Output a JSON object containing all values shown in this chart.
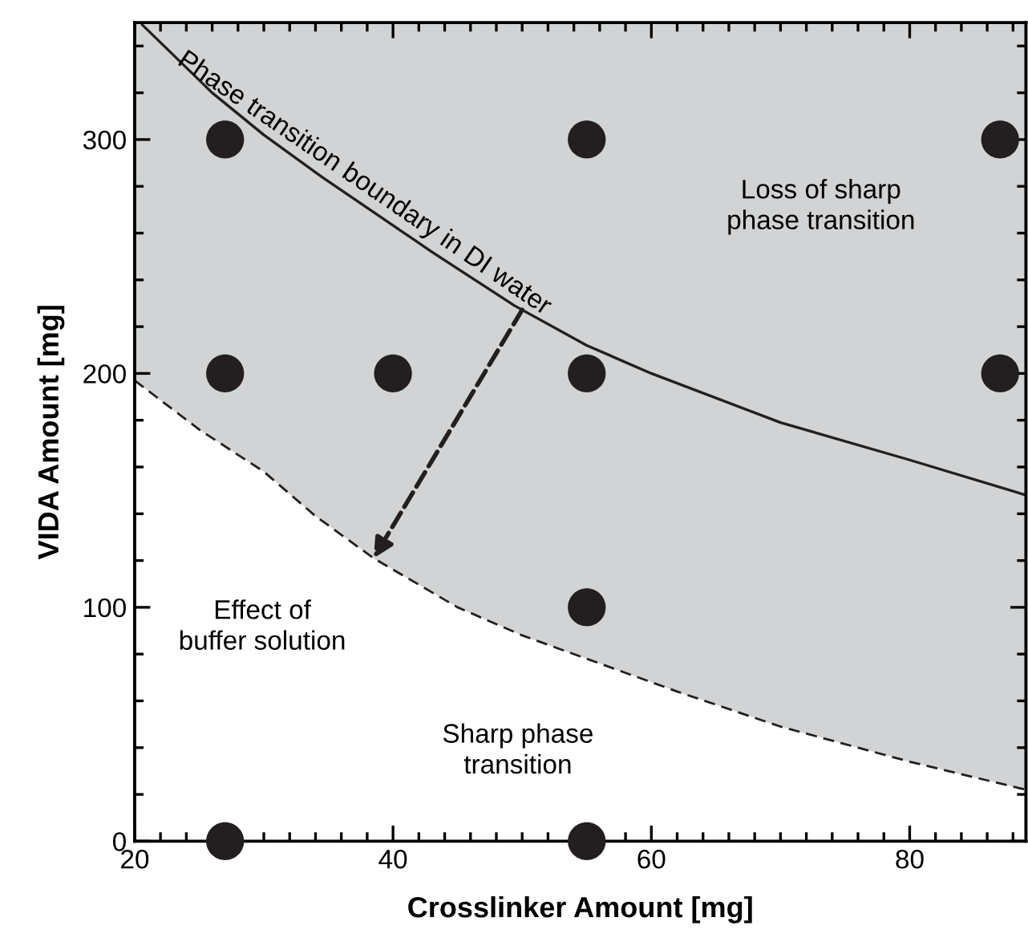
{
  "chart_data": {
    "type": "scatter",
    "xlabel": "Crosslinker Amount [mg]",
    "ylabel": "VIDA Amount [mg]",
    "xlim": [
      20,
      89
    ],
    "ylim": [
      0,
      350
    ],
    "xticks": [
      20,
      {
        "value": 22,
        "label": null
      },
      {
        "value": 24,
        "label": null
      },
      {
        "value": 26,
        "label": null
      },
      {
        "value": 28,
        "label": null
      },
      {
        "value": 30,
        "label": null
      },
      {
        "value": 32,
        "label": null
      },
      {
        "value": 34,
        "label": null
      },
      {
        "value": 36,
        "label": null
      },
      {
        "value": 38,
        "label": null
      },
      40,
      {
        "value": 42,
        "label": null
      },
      {
        "value": 44,
        "label": null
      },
      {
        "value": 46,
        "label": null
      },
      {
        "value": 48,
        "label": null
      },
      {
        "value": 50,
        "label": null
      },
      {
        "value": 52,
        "label": null
      },
      {
        "value": 54,
        "label": null
      },
      {
        "value": 56,
        "label": null
      },
      {
        "value": 58,
        "label": null
      },
      60,
      {
        "value": 62,
        "label": null
      },
      {
        "value": 64,
        "label": null
      },
      {
        "value": 66,
        "label": null
      },
      {
        "value": 68,
        "label": null
      },
      {
        "value": 70,
        "label": null
      },
      {
        "value": 72,
        "label": null
      },
      {
        "value": 74,
        "label": null
      },
      {
        "value": 76,
        "label": null
      },
      {
        "value": 78,
        "label": null
      },
      80,
      {
        "value": 82,
        "label": null
      },
      {
        "value": 84,
        "label": null
      },
      {
        "value": 86,
        "label": null
      },
      {
        "value": 88,
        "label": null
      }
    ],
    "yticks": [
      0,
      {
        "value": 20,
        "label": null
      },
      {
        "value": 40,
        "label": null
      },
      {
        "value": 60,
        "label": null
      },
      {
        "value": 80,
        "label": null
      },
      100,
      {
        "value": 120,
        "label": null
      },
      {
        "value": 140,
        "label": null
      },
      {
        "value": 160,
        "label": null
      },
      {
        "value": 180,
        "label": null
      },
      200,
      {
        "value": 220,
        "label": null
      },
      {
        "value": 240,
        "label": null
      },
      {
        "value": 260,
        "label": null
      },
      {
        "value": 280,
        "label": null
      },
      300,
      {
        "value": 320,
        "label": null
      },
      {
        "value": 340,
        "label": null
      }
    ],
    "bands": [
      {
        "axis": "x",
        "from": 20,
        "to": 89,
        "color": "#d1d3d4"
      }
    ],
    "series": [
      {
        "type": "area",
        "color": "#ffffff",
        "line_style": "dashed",
        "x": [
          20,
          25,
          30,
          34,
          38.5,
          45,
          50,
          55,
          62,
          70,
          80,
          89
        ],
        "values": [
          197,
          176,
          158,
          139,
          121,
          100,
          88,
          78,
          64,
          49,
          34,
          22
        ]
      },
      {
        "type": "line",
        "color": "#231f20",
        "line_style": "solid",
        "x": [
          20.6,
          26,
          30,
          34.5,
          43,
          49.4,
          55,
          60,
          70,
          80,
          89
        ],
        "values": [
          349,
          320,
          302,
          284,
          252,
          229,
          212,
          200,
          179,
          163,
          148
        ]
      },
      {
        "color": "#231f20",
        "marker": "circle",
        "x": [
          27,
          55,
          87,
          27,
          40,
          55,
          87,
          55,
          27,
          55
        ],
        "values": [
          300,
          300,
          300,
          200,
          200,
          200,
          200,
          100,
          0,
          0
        ]
      }
    ],
    "annotations": [
      {
        "text": "Phase transition boundary in DI water",
        "x": 37,
        "y": 275
      },
      "Loss of sharp\nphase transition",
      {
        "text": "Effect of\nbuffer solution",
        "x": 38.5,
        "y": 121
      },
      "Sharp phase\ntransition"
    ]
  }
}
